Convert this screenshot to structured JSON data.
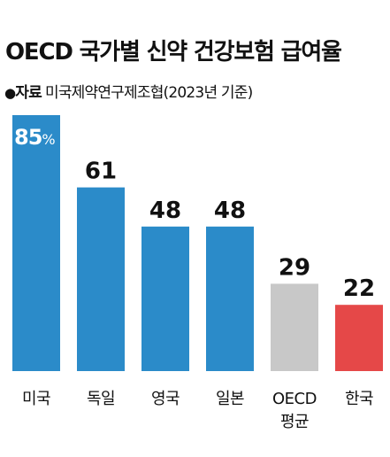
{
  "title": "OECD 국가별 신약 건강보험 급여율",
  "source": {
    "bullet": "●",
    "label": "자료",
    "text": "미국제약연구제조협(2023년 기준)"
  },
  "chart_data": {
    "type": "bar",
    "title": "OECD 국가별 신약 건강보험 급여율",
    "categories": [
      [
        "미국"
      ],
      [
        "독일"
      ],
      [
        "영국"
      ],
      [
        "일본"
      ],
      [
        "OECD",
        "평균"
      ],
      [
        "한국"
      ]
    ],
    "values": [
      85,
      61,
      48,
      48,
      29,
      22
    ],
    "value_labels": [
      "85%",
      "61",
      "48",
      "48",
      "29",
      "22"
    ],
    "colors": [
      "#2b8bc9",
      "#2b8bc9",
      "#2b8bc9",
      "#2b8bc9",
      "#c8c8c8",
      "#e54848"
    ],
    "ylim": [
      0,
      85
    ],
    "xlabel": "",
    "ylabel": "",
    "grid": false,
    "legend": "none"
  }
}
